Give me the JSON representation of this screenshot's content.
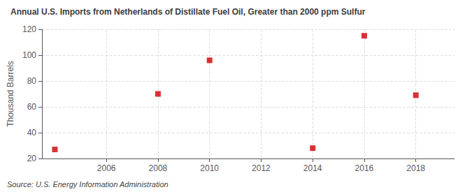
{
  "chart_data": {
    "type": "scatter",
    "title": "Annual U.S. Imports from Netherlands of Distillate Fuel Oil, Greater than 2000 ppm Sulfur",
    "ylabel": "Thousand Barrels",
    "annotations": [
      "Source: U.S. Energy Information Administration"
    ],
    "x": [
      2004,
      2008,
      2010,
      2014,
      2016,
      2018
    ],
    "values": [
      27,
      70,
      96,
      28,
      115,
      69
    ],
    "color": "#cc0000",
    "marker": "square",
    "xlim": [
      2003.5,
      2019.5
    ],
    "ylim": [
      20,
      120
    ],
    "xticks": [
      2006,
      2008,
      2010,
      2012,
      2014,
      2016,
      2018
    ],
    "yticks": [
      20,
      40,
      60,
      80,
      100,
      120
    ],
    "grid": true
  }
}
